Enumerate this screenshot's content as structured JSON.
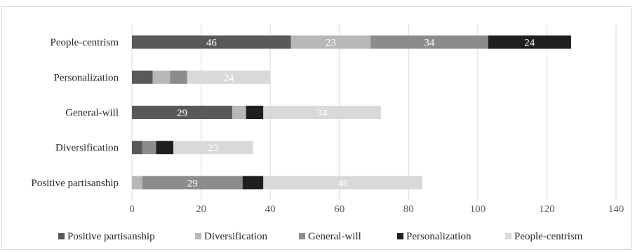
{
  "chart_data": {
    "type": "bar",
    "orientation": "horizontal",
    "stacked": true,
    "title": "",
    "xlabel": "",
    "ylabel": "",
    "xlim": [
      0,
      140
    ],
    "xticks": [
      "0",
      "20",
      "40",
      "60",
      "80",
      "100",
      "120",
      "140"
    ],
    "grid": true,
    "legend_position": "bottom",
    "categories": [
      "People-centrism",
      "Personalization",
      "General-will",
      "Diversification",
      "Positive partisanship"
    ],
    "series": [
      {
        "name": "Positive partisanship",
        "color": "#595959",
        "label_color": "#ffffff",
        "values": [
          46,
          6,
          29,
          3,
          0
        ],
        "labels": [
          "46",
          "",
          "29",
          "",
          ""
        ]
      },
      {
        "name": "Diversification",
        "color": "#b8b8b8",
        "label_color": "#ffffff",
        "values": [
          23,
          5,
          4,
          0,
          3
        ],
        "labels": [
          "23",
          "",
          "",
          "",
          ""
        ]
      },
      {
        "name": "General-will",
        "color": "#8c8c8c",
        "label_color": "#ffffff",
        "values": [
          34,
          5,
          0,
          4,
          29
        ],
        "labels": [
          "34",
          "",
          "",
          "",
          "29"
        ]
      },
      {
        "name": "Personalization",
        "color": "#1f1f1f",
        "label_color": "#ffffff",
        "values": [
          24,
          0,
          5,
          5,
          6
        ],
        "labels": [
          "24",
          "",
          "",
          "",
          ""
        ]
      },
      {
        "name": "People-centrism",
        "color": "#d9d9d9",
        "label_color": "#ffffff",
        "values": [
          0,
          24,
          34,
          23,
          46
        ],
        "labels": [
          "",
          "24",
          "34",
          "23",
          "46"
        ]
      }
    ]
  }
}
